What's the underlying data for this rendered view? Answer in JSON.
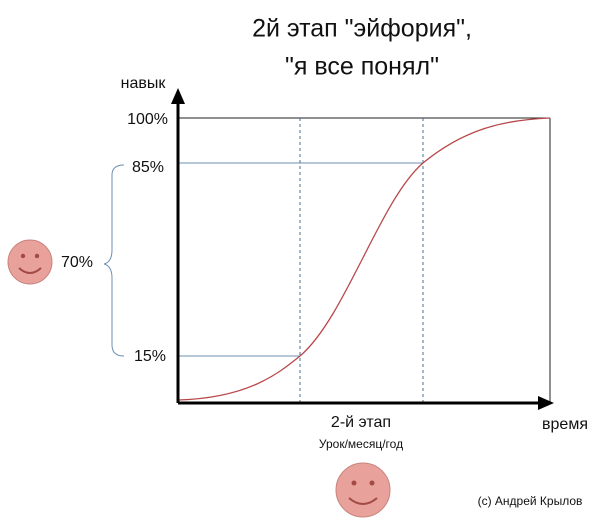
{
  "title": {
    "line1": "2й этап \"эйфория\",",
    "line2": "\"я все понял\""
  },
  "axes": {
    "y_label": "навык",
    "x_label": "время"
  },
  "y_ticks": [
    "100%",
    "85%",
    "15%"
  ],
  "brace_label": "70%",
  "stage": {
    "label": "2-й этап",
    "sublabel": "Урок/месяц/год"
  },
  "credit": "(c) Андрей Крылов"
}
